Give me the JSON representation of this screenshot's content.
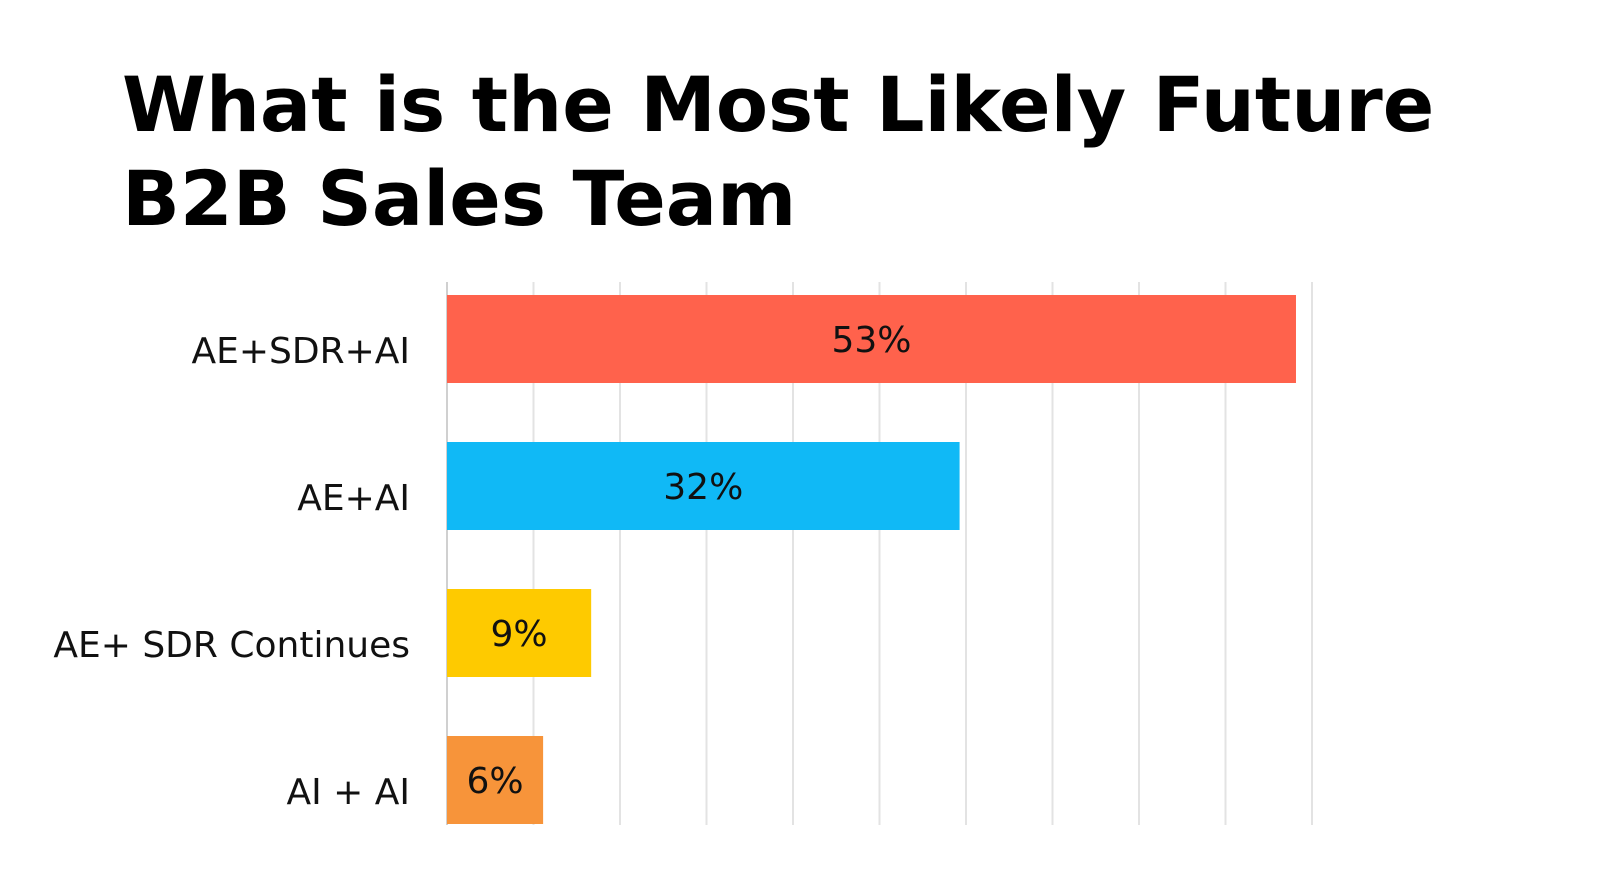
{
  "chart_data": {
    "type": "bar",
    "orientation": "horizontal",
    "title": "What is the Most Likely Future B2B Sales Team",
    "categories": [
      "AE+SDR+AI",
      "AE+AI",
      "AE+ SDR Continues",
      "AI + AI"
    ],
    "values": [
      53,
      32,
      9,
      6
    ],
    "data_labels": [
      "53%",
      "32%",
      "9%",
      "6%"
    ],
    "colors": [
      "#FF624C",
      "#10B9F6",
      "#FECA00",
      "#F7943A"
    ],
    "xlim": [
      0,
      54
    ],
    "grid": true,
    "legend": "none"
  }
}
